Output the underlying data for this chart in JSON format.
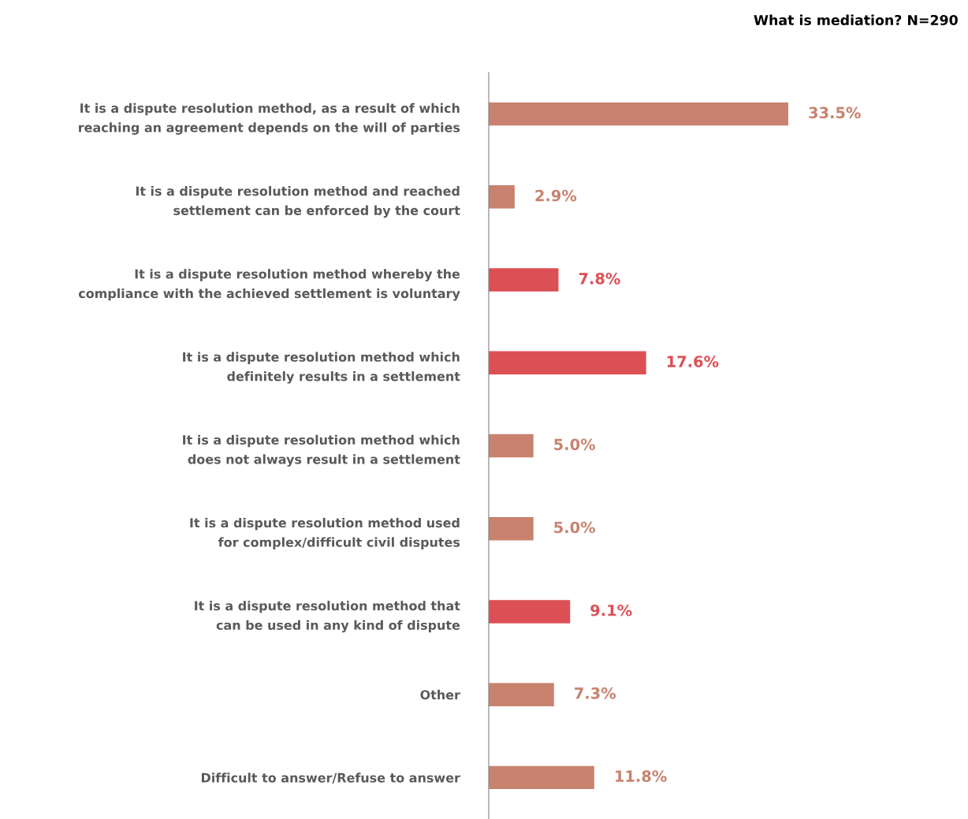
{
  "chart_data": {
    "type": "bar",
    "orientation": "horizontal",
    "title": "What is mediation? N=290",
    "categories": [
      "It is a dispute resolution method, as a result of which\nreaching an agreement depends on the will of parties",
      "It is a dispute resolution method and reached\nsettlement can be enforced by the court",
      "It is a dispute resolution method whereby the\ncompliance with the achieved settlement is voluntary",
      "It is a dispute resolution method which\ndefinitely results in a settlement",
      "It is a dispute resolution method which\ndoes not always result in a settlement",
      "It is a dispute resolution method used\nfor complex/difficult civil disputes",
      "It is a dispute resolution method that\ncan be used in any kind of dispute",
      "Other",
      "Difficult to answer/Refuse to answer"
    ],
    "values": [
      33.5,
      2.9,
      7.8,
      17.6,
      5.0,
      5.0,
      9.1,
      7.3,
      11.8
    ],
    "value_labels": [
      "33.5%",
      "2.9%",
      "7.8%",
      "17.6%",
      "5.0%",
      "5.0%",
      "9.1%",
      "7.3%",
      "11.8%"
    ],
    "colors": [
      "#c8826f",
      "#c8826f",
      "#dc4f55",
      "#dc4f55",
      "#c8826f",
      "#c8826f",
      "#dc4f55",
      "#c8826f",
      "#c8826f"
    ],
    "grid": false,
    "legend": false
  }
}
